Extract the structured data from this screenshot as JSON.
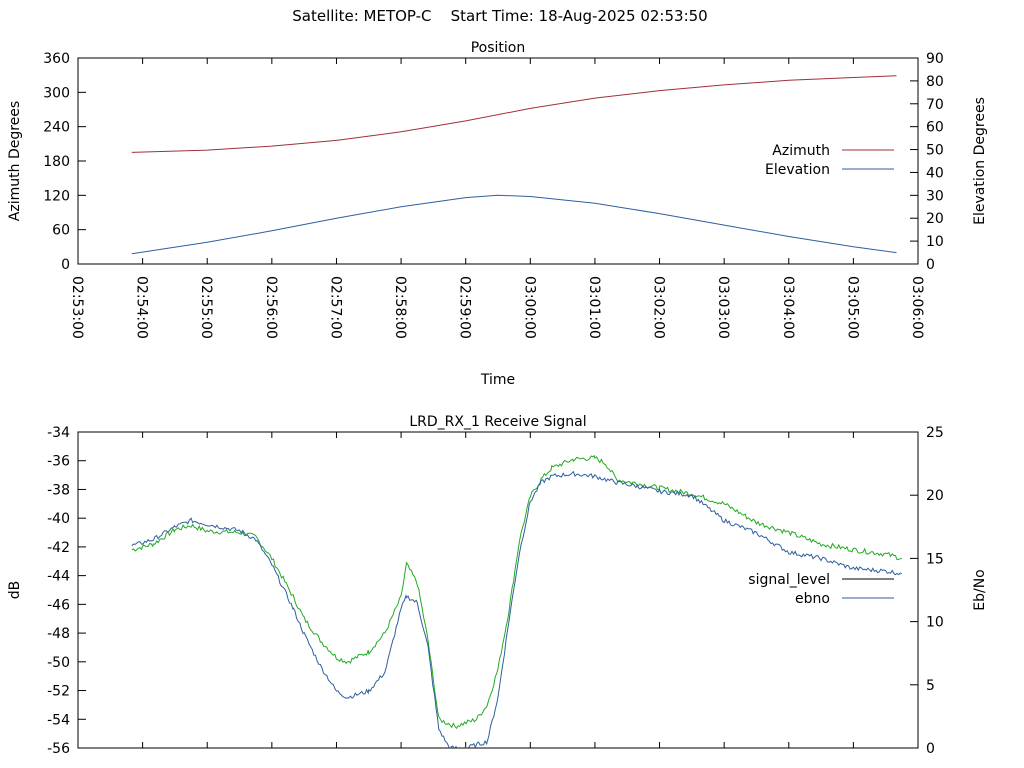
{
  "header": {
    "satellite": "Satellite: METOP-C",
    "start_time": "Start Time: 18-Aug-2025 02:53:50"
  },
  "chart_data": [
    {
      "type": "line",
      "title": "Position",
      "xlabel": "Time",
      "ylabel": "Azimuth Degrees",
      "y2label": "Elevation Degrees",
      "xlim": [
        "02:53:00",
        "03:06:00"
      ],
      "x_ticks": [
        "02:53:00",
        "02:54:00",
        "02:55:00",
        "02:56:00",
        "02:57:00",
        "02:58:00",
        "02:59:00",
        "03:00:00",
        "03:01:00",
        "03:02:00",
        "03:03:00",
        "03:04:00",
        "03:05:00",
        "03:06:00"
      ],
      "ylim": [
        0,
        360
      ],
      "y_ticks": [
        "0",
        "60",
        "120",
        "180",
        "240",
        "300",
        "360"
      ],
      "y2lim": [
        0,
        90
      ],
      "y2_ticks": [
        "0",
        "10",
        "20",
        "30",
        "40",
        "50",
        "60",
        "70",
        "80",
        "90"
      ],
      "legend_position": "right",
      "grid": false,
      "series": [
        {
          "name": "Azimuth",
          "axis": "left",
          "color": "#a0303a",
          "points": [
            [
              "02:53:50",
              195
            ],
            [
              "02:55:00",
              199
            ],
            [
              "02:56:00",
              206
            ],
            [
              "02:57:00",
              216
            ],
            [
              "02:58:00",
              231
            ],
            [
              "02:59:00",
              250
            ],
            [
              "03:00:00",
              272
            ],
            [
              "03:01:00",
              290
            ],
            [
              "03:02:00",
              303
            ],
            [
              "03:03:00",
              313
            ],
            [
              "03:04:00",
              321
            ],
            [
              "03:05:00",
              326
            ],
            [
              "03:05:40",
              329
            ]
          ]
        },
        {
          "name": "Elevation",
          "axis": "right",
          "color": "#2e5f9e",
          "points": [
            [
              "02:53:50",
              4.5
            ],
            [
              "02:55:00",
              9.5
            ],
            [
              "02:56:00",
              14.5
            ],
            [
              "02:57:00",
              20
            ],
            [
              "02:58:00",
              25
            ],
            [
              "02:59:00",
              29
            ],
            [
              "02:59:30",
              30
            ],
            [
              "03:00:00",
              29.5
            ],
            [
              "03:01:00",
              26.5
            ],
            [
              "03:02:00",
              22
            ],
            [
              "03:03:00",
              17
            ],
            [
              "03:04:00",
              12
            ],
            [
              "03:05:00",
              7.5
            ],
            [
              "03:05:40",
              5
            ]
          ]
        }
      ]
    },
    {
      "type": "line",
      "title": "LRD_RX_1 Receive Signal",
      "ylabel": "dB",
      "y2label": "Eb/No",
      "xlim": [
        "02:53:00",
        "03:06:00"
      ],
      "ylim": [
        -56,
        -34
      ],
      "y_ticks": [
        "-56",
        "-54",
        "-52",
        "-50",
        "-48",
        "-46",
        "-44",
        "-42",
        "-40",
        "-38",
        "-36",
        "-34"
      ],
      "y2lim": [
        0,
        25
      ],
      "y2_ticks": [
        "0",
        "5",
        "10",
        "15",
        "20",
        "25"
      ],
      "legend_position": "right",
      "grid": false,
      "legend": [
        {
          "name": "signal_level",
          "color": "#000000"
        },
        {
          "name": "ebno",
          "color": "#2e5f9e"
        }
      ],
      "series": [
        {
          "name": "signal_level",
          "axis": "left",
          "color": "#22aa22",
          "points": [
            [
              "02:53:50",
              -42.2
            ],
            [
              "02:54:10",
              -41.8
            ],
            [
              "02:54:30",
              -40.8
            ],
            [
              "02:54:45",
              -40.5
            ],
            [
              "02:55:00",
              -40.9
            ],
            [
              "02:55:30",
              -41.0
            ],
            [
              "02:55:45",
              -41.3
            ],
            [
              "02:56:00",
              -42.8
            ],
            [
              "02:56:20",
              -45.5
            ],
            [
              "02:56:30",
              -47.0
            ],
            [
              "02:56:45",
              -48.5
            ],
            [
              "02:57:00",
              -49.7
            ],
            [
              "02:57:10",
              -50.0
            ],
            [
              "02:57:30",
              -49.3
            ],
            [
              "02:57:45",
              -48.0
            ],
            [
              "02:58:00",
              -45.5
            ],
            [
              "02:58:05",
              -43.2
            ],
            [
              "02:58:15",
              -44.5
            ],
            [
              "02:58:25",
              -48.5
            ],
            [
              "02:58:35",
              -54.0
            ],
            [
              "02:58:50",
              -54.5
            ],
            [
              "02:59:10",
              -54.0
            ],
            [
              "02:59:20",
              -53.0
            ],
            [
              "02:59:30",
              -50.5
            ],
            [
              "02:59:40",
              -46.5
            ],
            [
              "02:59:50",
              -41.5
            ],
            [
              "03:00:00",
              -38.5
            ],
            [
              "03:00:10",
              -37.3
            ],
            [
              "03:00:20",
              -36.5
            ],
            [
              "03:00:40",
              -35.9
            ],
            [
              "03:01:00",
              -35.8
            ],
            [
              "03:01:10",
              -36.2
            ],
            [
              "03:01:20",
              -37.3
            ],
            [
              "03:01:40",
              -37.6
            ],
            [
              "03:02:00",
              -37.9
            ],
            [
              "03:02:30",
              -38.3
            ],
            [
              "03:03:00",
              -39.0
            ],
            [
              "03:03:30",
              -40.3
            ],
            [
              "03:04:00",
              -41.0
            ],
            [
              "03:04:30",
              -41.8
            ],
            [
              "03:05:00",
              -42.2
            ],
            [
              "03:05:30",
              -42.5
            ],
            [
              "03:05:45",
              -42.8
            ]
          ]
        },
        {
          "name": "ebno",
          "axis": "right",
          "color": "#2e5f9e",
          "points": [
            [
              "02:53:50",
              16.0
            ],
            [
              "02:54:10",
              16.5
            ],
            [
              "02:54:30",
              17.5
            ],
            [
              "02:54:45",
              18.0
            ],
            [
              "02:55:00",
              17.7
            ],
            [
              "02:55:30",
              17.2
            ],
            [
              "02:55:45",
              16.5
            ],
            [
              "02:56:00",
              14.5
            ],
            [
              "02:56:20",
              11.0
            ],
            [
              "02:56:30",
              9.0
            ],
            [
              "02:56:45",
              6.5
            ],
            [
              "02:57:00",
              4.5
            ],
            [
              "02:57:10",
              4.0
            ],
            [
              "02:57:30",
              4.5
            ],
            [
              "02:57:45",
              6.0
            ],
            [
              "02:58:00",
              11.0
            ],
            [
              "02:58:05",
              12.0
            ],
            [
              "02:58:15",
              11.5
            ],
            [
              "02:58:25",
              8.0
            ],
            [
              "02:58:35",
              1.5
            ],
            [
              "02:58:45",
              0.0
            ],
            [
              "02:59:00",
              0.0
            ],
            [
              "02:59:20",
              0.5
            ],
            [
              "02:59:30",
              4.0
            ],
            [
              "02:59:40",
              10.0
            ],
            [
              "02:59:50",
              15.5
            ],
            [
              "03:00:00",
              19.5
            ],
            [
              "03:00:10",
              21.0
            ],
            [
              "03:00:20",
              21.5
            ],
            [
              "03:00:40",
              21.7
            ],
            [
              "03:01:00",
              21.5
            ],
            [
              "03:01:20",
              21.0
            ],
            [
              "03:01:40",
              20.7
            ],
            [
              "03:02:00",
              20.3
            ],
            [
              "03:02:30",
              20.0
            ],
            [
              "03:03:00",
              18.0
            ],
            [
              "03:03:30",
              17.0
            ],
            [
              "03:04:00",
              15.5
            ],
            [
              "03:04:30",
              15.0
            ],
            [
              "03:05:00",
              14.2
            ],
            [
              "03:05:30",
              14.0
            ],
            [
              "03:05:45",
              13.8
            ]
          ]
        }
      ]
    }
  ]
}
